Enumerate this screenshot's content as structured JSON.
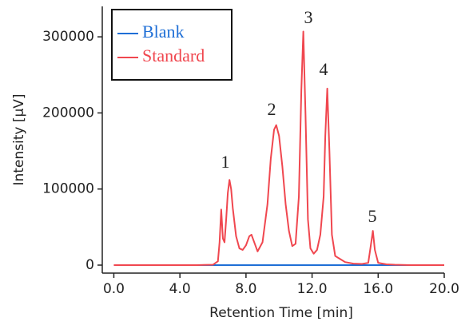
{
  "chart_data": {
    "type": "line",
    "x_label": "Retention Time [min]",
    "y_label": "Intensity [µV]",
    "x": [
      0,
      1,
      2,
      3,
      4,
      5,
      6,
      6.3,
      6.4,
      6.5,
      6.6,
      6.7,
      6.8,
      6.9,
      7.0,
      7.1,
      7.2,
      7.4,
      7.6,
      7.8,
      8.0,
      8.2,
      8.33,
      8.5,
      8.7,
      9.0,
      9.3,
      9.5,
      9.7,
      9.83,
      10.0,
      10.2,
      10.4,
      10.6,
      10.8,
      11.0,
      11.2,
      11.35,
      11.47,
      11.6,
      11.75,
      11.9,
      12.1,
      12.3,
      12.5,
      12.7,
      12.8,
      12.92,
      13.05,
      13.2,
      13.4,
      13.7,
      14.0,
      14.5,
      15.0,
      15.4,
      15.55,
      15.68,
      15.8,
      16.0,
      16.5,
      17,
      18,
      19,
      20
    ],
    "series": [
      {
        "name": "Blank",
        "color": "#1f6fd6",
        "values": [
          0,
          0,
          0,
          0,
          0,
          0,
          0,
          0,
          0,
          0,
          0,
          0,
          0,
          0,
          0,
          0,
          0,
          0,
          0,
          0,
          0,
          0,
          0,
          0,
          0,
          0,
          0,
          0,
          0,
          0,
          0,
          0,
          0,
          0,
          0,
          0,
          0,
          0,
          0,
          0,
          0,
          0,
          0,
          0,
          0,
          0,
          0,
          0,
          0,
          0,
          0,
          0,
          0,
          0,
          0,
          0,
          0,
          0,
          0,
          0,
          0,
          0,
          0,
          0,
          0
        ]
      },
      {
        "name": "Standard",
        "color": "#f0474f",
        "values": [
          0,
          0,
          0,
          0,
          0,
          0,
          500,
          5000,
          30000,
          73000,
          35000,
          30000,
          60000,
          95000,
          112000,
          100000,
          75000,
          38000,
          22000,
          20000,
          26000,
          38000,
          40000,
          30000,
          18000,
          30000,
          80000,
          140000,
          178000,
          184000,
          170000,
          130000,
          80000,
          45000,
          25000,
          28000,
          90000,
          230000,
          307000,
          200000,
          60000,
          22000,
          15000,
          20000,
          40000,
          90000,
          170000,
          232000,
          150000,
          40000,
          12000,
          8000,
          4000,
          2000,
          1500,
          3000,
          25000,
          45000,
          20000,
          3000,
          1000,
          500,
          0,
          0,
          0
        ]
      }
    ],
    "annotations": [
      "1",
      "2",
      "3",
      "4",
      "5"
    ],
    "xlim": [
      -0.7,
      20
    ],
    "xticks": [
      {
        "value": 0,
        "label": "0.0"
      },
      {
        "value": 4,
        "label": "4.0"
      },
      {
        "value": 8,
        "label": "8.0"
      },
      {
        "value": 12,
        "label": "12.0"
      },
      {
        "value": 16,
        "label": "16.0"
      },
      {
        "value": 20,
        "label": "20.0"
      }
    ],
    "ylim": [
      -10500,
      340000
    ],
    "yticks": [
      0,
      100000,
      200000,
      300000
    ],
    "legend": "upper-left"
  }
}
